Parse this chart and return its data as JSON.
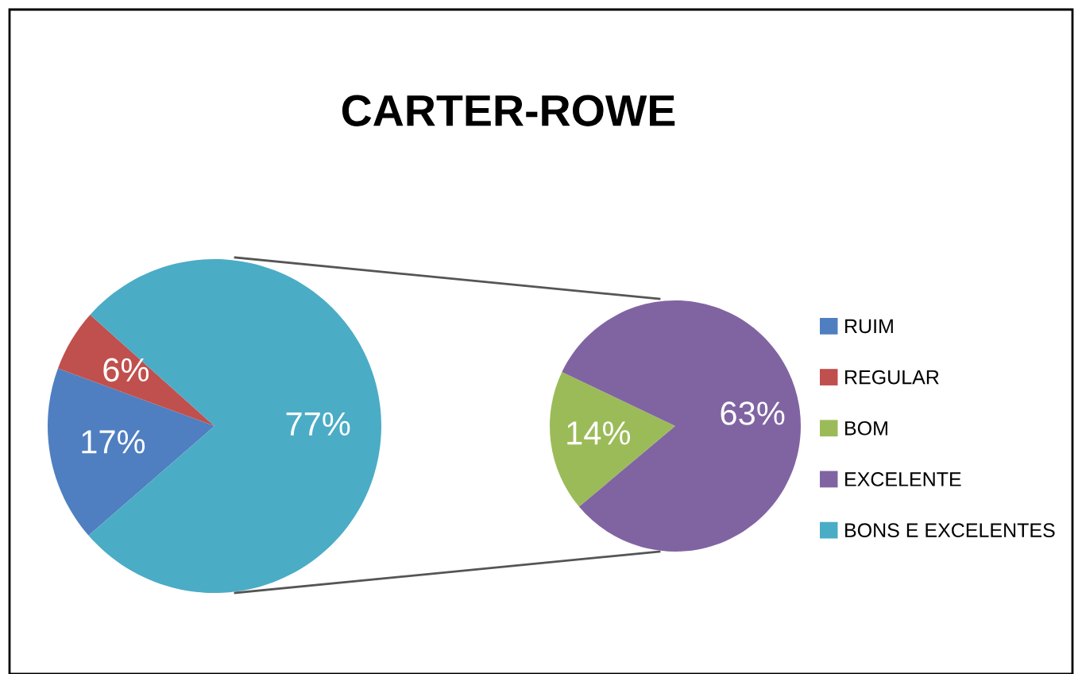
{
  "chart_data": [
    {
      "type": "pie",
      "title": "CARTER-ROWE",
      "categories": [
        "RUIM",
        "REGULAR",
        "BONS E EXCELENTES"
      ],
      "values": [
        17,
        6,
        77
      ],
      "value_labels": [
        "17%",
        "6%",
        "77%"
      ],
      "colors": [
        "#4f7fc0",
        "#c0504d",
        "#4bacc6"
      ],
      "legend": "right"
    },
    {
      "type": "pie",
      "categories": [
        "BOM",
        "EXCELENTE"
      ],
      "values": [
        14,
        63
      ],
      "value_labels": [
        "14%",
        "63%"
      ],
      "colors": [
        "#9bbb59",
        "#8064a2"
      ],
      "legend": "right"
    }
  ]
}
